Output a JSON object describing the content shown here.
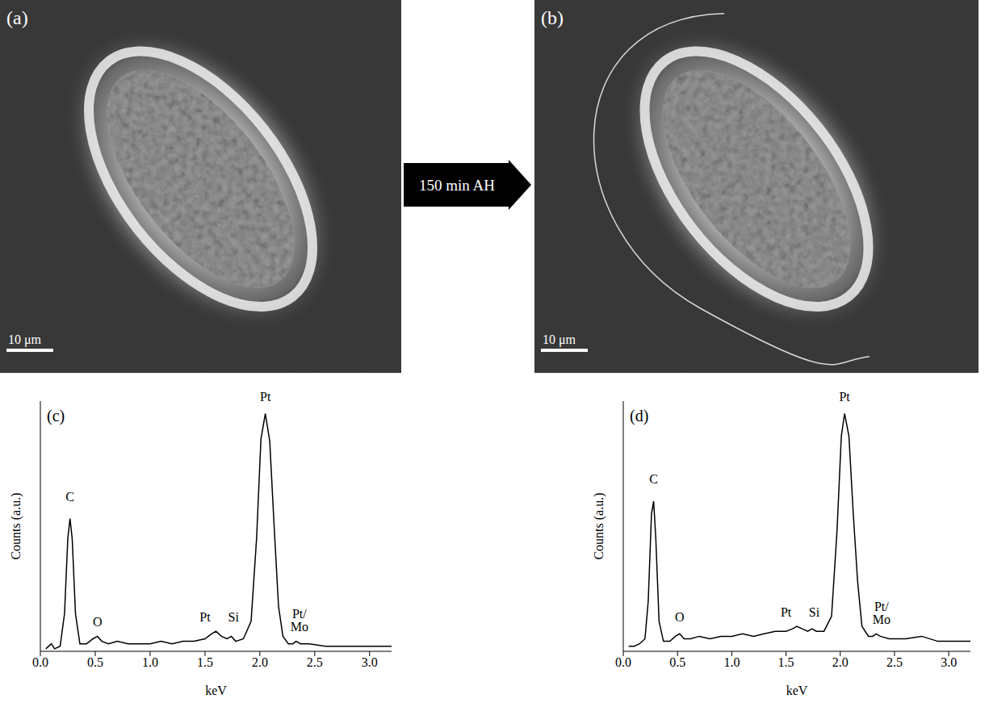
{
  "panels": [
    {
      "label": "(a)",
      "scale_bar": "10 μm"
    },
    {
      "label": "(b)",
      "scale_bar": "10 μm"
    }
  ],
  "arrow": {
    "label": "150 min AH"
  },
  "chart_data": [
    {
      "type": "line",
      "title": "(c)",
      "x_label": "keV",
      "y_label": "Counts (a.u.)",
      "color": "#000000",
      "tick_labels": "x",
      "xlim": [
        0,
        3.2
      ],
      "xticks": [
        {
          "value": 0,
          "label": "0.0"
        },
        {
          "value": 0.5,
          "label": "0.5"
        },
        {
          "value": 1,
          "label": "1.0"
        },
        {
          "value": 1.5,
          "label": "1.5"
        },
        {
          "value": 2,
          "label": "2.0"
        },
        {
          "value": 2.5,
          "label": "2.5"
        },
        {
          "value": 3,
          "label": "3.0"
        }
      ],
      "ylim": [
        0,
        100
      ],
      "x": [
        0.05,
        0.1,
        0.13,
        0.18,
        0.22,
        0.25,
        0.27,
        0.29,
        0.32,
        0.36,
        0.42,
        0.48,
        0.52,
        0.56,
        0.62,
        0.7,
        0.8,
        0.9,
        1.0,
        1.1,
        1.2,
        1.3,
        1.4,
        1.5,
        1.56,
        1.6,
        1.65,
        1.7,
        1.74,
        1.78,
        1.85,
        1.92,
        1.97,
        2.01,
        2.05,
        2.09,
        2.13,
        2.17,
        2.21,
        2.26,
        2.3,
        2.33,
        2.37,
        2.45,
        2.6,
        2.75,
        2.9,
        3.05,
        3.2
      ],
      "values": [
        1,
        3,
        1,
        2,
        15,
        45,
        53,
        45,
        15,
        3,
        3,
        5,
        6,
        4,
        3,
        4,
        3,
        3,
        3,
        4,
        3,
        4,
        4,
        5,
        7,
        8,
        6,
        5,
        6,
        4,
        5,
        12,
        45,
        85,
        95,
        84,
        50,
        18,
        6,
        3,
        3,
        4,
        3,
        3,
        2,
        2,
        2,
        2,
        2
      ],
      "annotations": [
        {
          "text": "C",
          "x": 0.27,
          "y": 60
        },
        {
          "text": "O",
          "x": 0.52,
          "y": 10
        },
        {
          "text": "Pt",
          "x": 1.5,
          "y": 12
        },
        {
          "text": "Si",
          "x": 1.76,
          "y": 12
        },
        {
          "text": "Pt",
          "x": 2.05,
          "y": 100
        },
        {
          "text": "Pt/Mo",
          "x": 2.36,
          "y": 8
        }
      ]
    },
    {
      "type": "line",
      "title": "(d)",
      "x_label": "keV",
      "y_label": "Counts (a.u.)",
      "color": "#000000",
      "tick_labels": "x",
      "xlim": [
        0,
        3.2
      ],
      "xticks": [
        {
          "value": 0,
          "label": "0.0"
        },
        {
          "value": 0.5,
          "label": "0.5"
        },
        {
          "value": 1,
          "label": "1.0"
        },
        {
          "value": 1.5,
          "label": "1.5"
        },
        {
          "value": 2,
          "label": "2.0"
        },
        {
          "value": 2.5,
          "label": "2.5"
        },
        {
          "value": 3,
          "label": "3.0"
        }
      ],
      "ylim": [
        0,
        100
      ],
      "x": [
        0.05,
        0.1,
        0.15,
        0.2,
        0.23,
        0.26,
        0.28,
        0.3,
        0.33,
        0.37,
        0.43,
        0.48,
        0.52,
        0.56,
        0.62,
        0.7,
        0.8,
        0.9,
        1.0,
        1.1,
        1.2,
        1.3,
        1.4,
        1.5,
        1.56,
        1.6,
        1.65,
        1.7,
        1.74,
        1.78,
        1.85,
        1.92,
        1.97,
        2.01,
        2.04,
        2.08,
        2.12,
        2.16,
        2.2,
        2.26,
        2.3,
        2.33,
        2.37,
        2.45,
        2.6,
        2.75,
        2.9,
        3.05,
        3.2
      ],
      "values": [
        2,
        2,
        3,
        5,
        20,
        55,
        60,
        45,
        12,
        4,
        4,
        6,
        7,
        5,
        5,
        6,
        5,
        6,
        6,
        7,
        6,
        7,
        8,
        8,
        9,
        10,
        9,
        8,
        9,
        8,
        8,
        14,
        48,
        86,
        95,
        86,
        55,
        28,
        10,
        6,
        6,
        7,
        6,
        5,
        5,
        6,
        4,
        4,
        4
      ],
      "annotations": [
        {
          "text": "C",
          "x": 0.28,
          "y": 67
        },
        {
          "text": "O",
          "x": 0.52,
          "y": 12
        },
        {
          "text": "Pt",
          "x": 1.5,
          "y": 14
        },
        {
          "text": "Si",
          "x": 1.76,
          "y": 14
        },
        {
          "text": "Pt",
          "x": 2.04,
          "y": 100
        },
        {
          "text": "Pt/Mo",
          "x": 2.38,
          "y": 11
        }
      ]
    }
  ]
}
